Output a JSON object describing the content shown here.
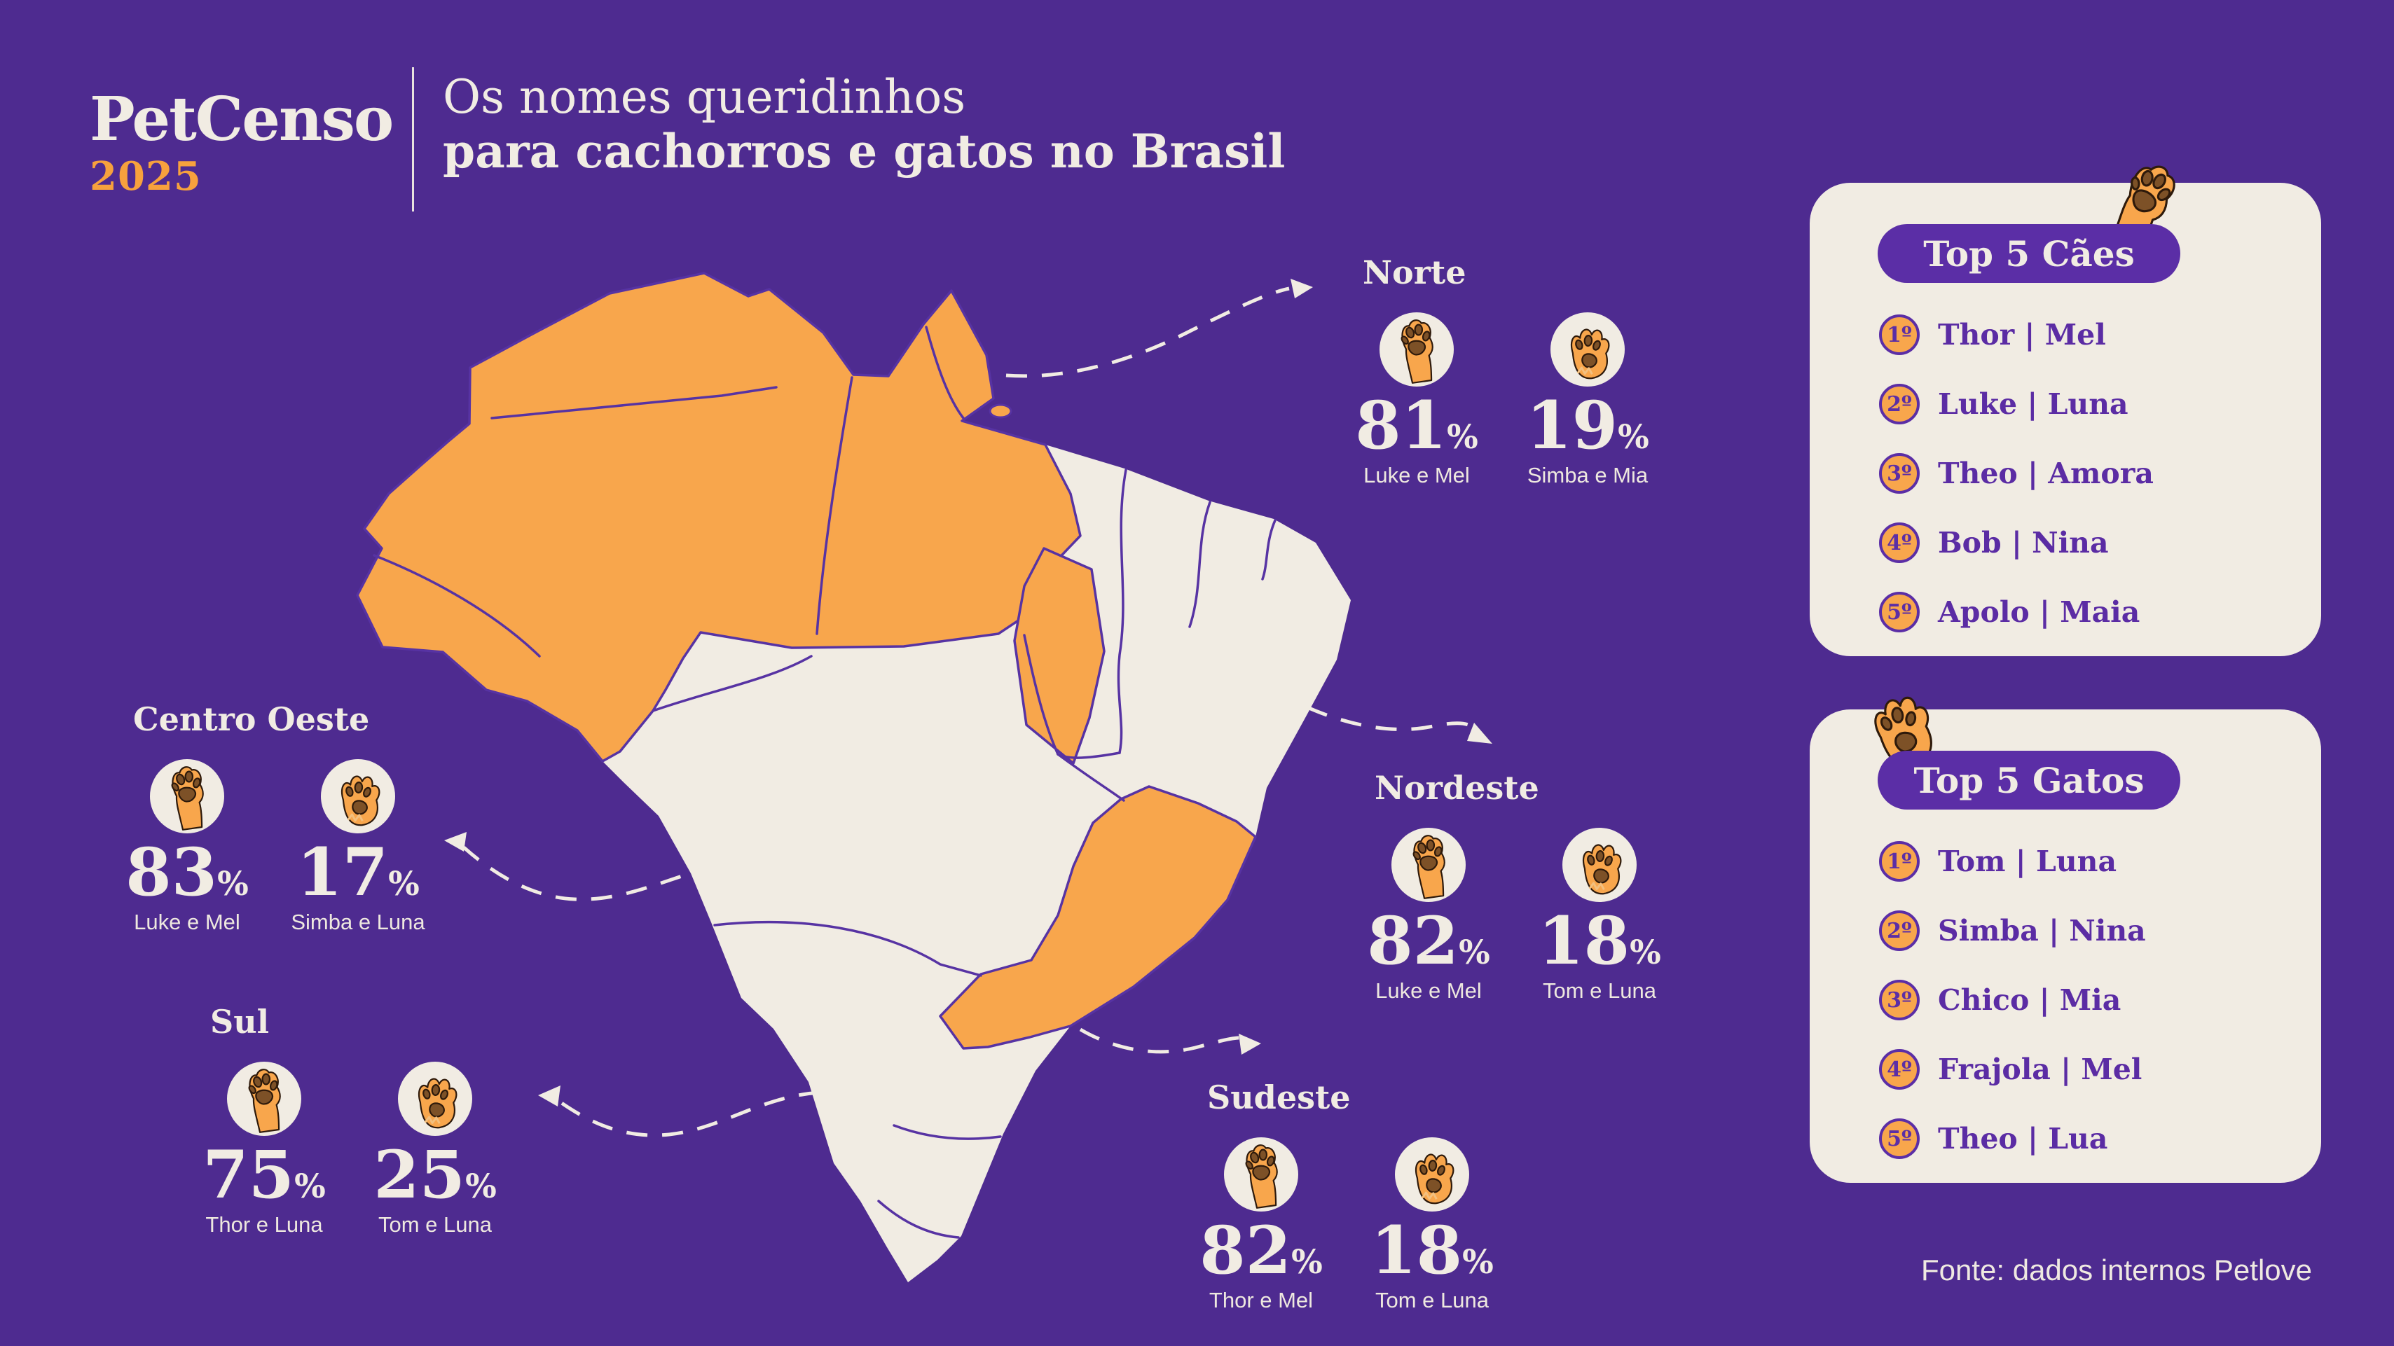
{
  "header": {
    "logo": "PetCenso",
    "year": "2025",
    "title_line1": "Os nomes queridinhos",
    "title_line2": "para cachorros e gatos no Brasil"
  },
  "strings": {
    "percent": "%"
  },
  "colors": {
    "background": "#4e2b90",
    "purple_accent": "#5b2ea6",
    "map_border": "#5733a3",
    "cream": "#f1ece3",
    "orange": "#f8a64c",
    "pad_brown": "#7d5127"
  },
  "regions": [
    {
      "id": "norte",
      "name": "Norte",
      "dog": {
        "value": "81",
        "names": "Luke e Mel"
      },
      "cat": {
        "value": "19",
        "names": "Simba e Mia"
      }
    },
    {
      "id": "centro_oeste",
      "name": "Centro Oeste",
      "dog": {
        "value": "83",
        "names": "Luke e Mel"
      },
      "cat": {
        "value": "17",
        "names": "Simba e Luna"
      }
    },
    {
      "id": "sul",
      "name": "Sul",
      "dog": {
        "value": "75",
        "names": "Thor e Luna"
      },
      "cat": {
        "value": "25",
        "names": "Tom e Luna"
      }
    },
    {
      "id": "nordeste",
      "name": "Nordeste",
      "dog": {
        "value": "82",
        "names": "Luke e Mel"
      },
      "cat": {
        "value": "18",
        "names": "Tom e Luna"
      }
    },
    {
      "id": "sudeste",
      "name": "Sudeste",
      "dog": {
        "value": "82",
        "names": "Thor e Mel"
      },
      "cat": {
        "value": "18",
        "names": "Tom e Luna"
      }
    }
  ],
  "top5_caes": {
    "title": "Top 5 Cães",
    "items": [
      {
        "rank": "1º",
        "pair": "Thor | Mel"
      },
      {
        "rank": "2º",
        "pair": "Luke | Luna"
      },
      {
        "rank": "3º",
        "pair": "Theo | Amora"
      },
      {
        "rank": "4º",
        "pair": "Bob | Nina"
      },
      {
        "rank": "5º",
        "pair": "Apolo | Maia"
      }
    ]
  },
  "top5_gatos": {
    "title": "Top 5 Gatos",
    "items": [
      {
        "rank": "1º",
        "pair": "Tom | Luna"
      },
      {
        "rank": "2º",
        "pair": "Simba | Nina"
      },
      {
        "rank": "3º",
        "pair": "Chico | Mia"
      },
      {
        "rank": "4º",
        "pair": "Frajola | Mel"
      },
      {
        "rank": "5º",
        "pair": "Theo | Lua"
      }
    ]
  },
  "footer": {
    "source": "Fonte: dados internos Petlove"
  }
}
